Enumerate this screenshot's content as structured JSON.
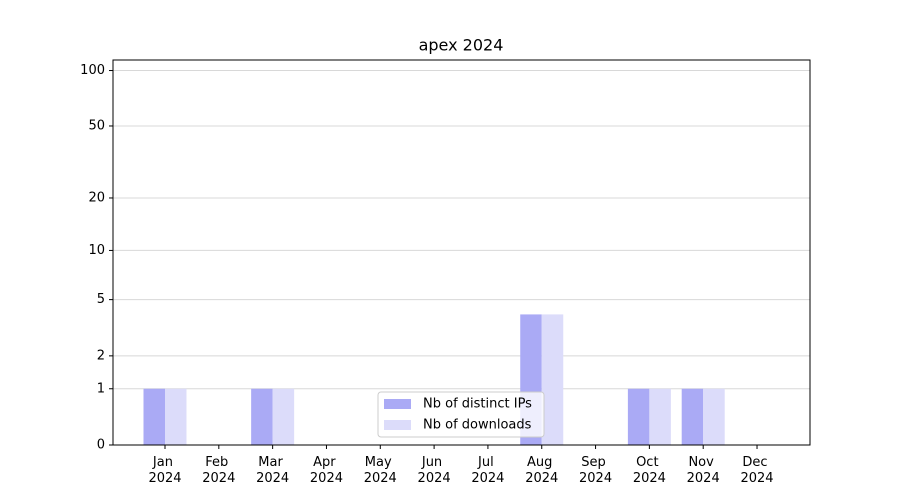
{
  "chart_data": {
    "type": "bar",
    "title": "apex 2024",
    "categories": [
      "Jan 2024",
      "Feb 2024",
      "Mar 2024",
      "Apr 2024",
      "May 2024",
      "Jun 2024",
      "Jul 2024",
      "Aug 2024",
      "Sep 2024",
      "Oct 2024",
      "Nov 2024",
      "Dec 2024"
    ],
    "series": [
      {
        "name": "Nb of distinct IPs",
        "color": "#aaaaf5",
        "values": [
          1,
          0,
          1,
          0,
          0,
          0,
          0,
          4,
          0,
          1,
          1,
          0
        ]
      },
      {
        "name": "Nb of downloads",
        "color": "#dcdcfa",
        "values": [
          1,
          0,
          1,
          0,
          0,
          0,
          0,
          4,
          0,
          1,
          1,
          0
        ]
      }
    ],
    "yscale": "log1p",
    "ylim": [
      0,
      114
    ],
    "yticks": [
      0,
      1,
      2,
      5,
      10,
      20,
      50,
      100
    ],
    "grid": true,
    "legend": "lower center"
  }
}
